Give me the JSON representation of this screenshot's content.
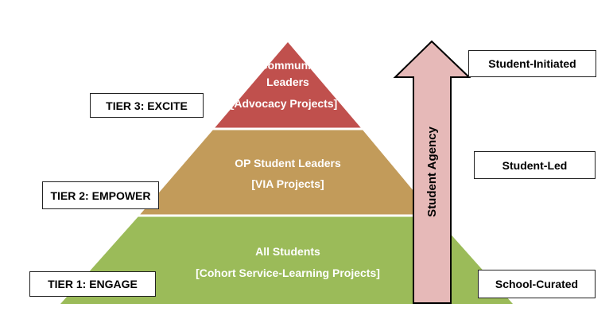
{
  "colors": {
    "tier1_fill": "#9bbb59",
    "tier2_fill": "#c29b5a",
    "tier3_fill": "#c0504d",
    "arrow_fill": "#e6b9b8",
    "arrow_stroke": "#000000",
    "text_light": "#ffffff",
    "text_dark": "#000000"
  },
  "pyramid": {
    "tier3": {
      "line1": "Community",
      "line2": "Leaders",
      "line3": "[Advocacy Projects]"
    },
    "tier2": {
      "line1": "OP Student Leaders",
      "line2": "[VIA Projects]"
    },
    "tier1": {
      "line1": "All Students",
      "line2": "[Cohort Service-Learning Projects]"
    }
  },
  "left_labels": {
    "tier3": "TIER 3: EXCITE",
    "tier2": "TIER 2: EMPOWER",
    "tier1": "TIER 1: ENGAGE"
  },
  "arrow": {
    "label": "Student Agency",
    "icon": "up-arrow"
  },
  "right_labels": {
    "top": "Student-Initiated",
    "middle": "Student-Led",
    "bottom": "School-Curated"
  }
}
